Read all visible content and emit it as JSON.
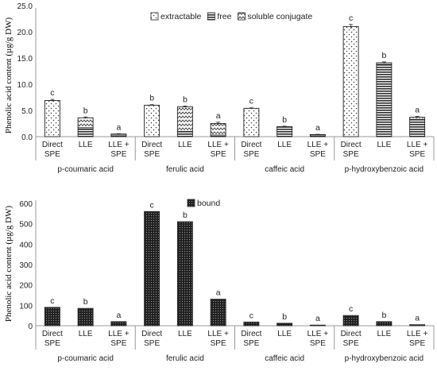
{
  "chart_data": [
    {
      "type": "bar",
      "stacked": true,
      "ylabel": "Phenolic acid content (µg/g DW)",
      "ylim": [
        0,
        25
      ],
      "ytick_labels": [
        "0.0",
        "5.0",
        "10.0",
        "15.0",
        "20.0",
        "25.0"
      ],
      "grid": false,
      "legend_position": "top",
      "groups": [
        "p-coumaric acid",
        "ferulic acid",
        "caffeic acid",
        "p-hydroxybenzoic acid"
      ],
      "methods": [
        "Direct SPE",
        "LLE",
        "LLE + SPE"
      ],
      "series": [
        {
          "name": "extractable",
          "pattern": "dots",
          "values": [
            [
              6.9,
              0,
              0
            ],
            [
              6.0,
              0,
              0
            ],
            [
              5.4,
              0,
              0
            ],
            [
              21.0,
              0,
              0
            ]
          ]
        },
        {
          "name": "free",
          "pattern": "horizontal-lines",
          "values": [
            [
              0,
              1.7,
              0.3
            ],
            [
              0,
              1.0,
              0.3
            ],
            [
              0,
              1.8,
              0.3
            ],
            [
              0,
              13.8,
              3.3
            ]
          ]
        },
        {
          "name": "soluble conjugate",
          "pattern": "zigzag",
          "values": [
            [
              0,
              1.9,
              0.2
            ],
            [
              0,
              4.7,
              2.2
            ],
            [
              0,
              0.1,
              0.1
            ],
            [
              0,
              0.3,
              0.4
            ]
          ]
        }
      ],
      "error_bars": [
        [
          0.2,
          0.15,
          0.05
        ],
        [
          0.1,
          0.15,
          0.25
        ],
        [
          0.1,
          0.1,
          0.05
        ],
        [
          0.4,
          0.15,
          0.15
        ]
      ],
      "significance_letters": [
        [
          "c",
          "b",
          "a"
        ],
        [
          "b",
          "b",
          "a"
        ],
        [
          "c",
          "b",
          "a"
        ],
        [
          "c",
          "b",
          "a"
        ]
      ]
    },
    {
      "type": "bar",
      "ylabel": "Phenolic acid content (µg/g DW)",
      "ylim": [
        0,
        600
      ],
      "ytick_labels": [
        "0",
        "100",
        "200",
        "300",
        "400",
        "500",
        "600"
      ],
      "grid": false,
      "legend_position": "top",
      "groups": [
        "p-coumaric acid",
        "ferulic acid",
        "caffeic acid",
        "p-hydroxybenzoic acid"
      ],
      "methods": [
        "Direct SPE",
        "LLE",
        "LLE + SPE"
      ],
      "series": [
        {
          "name": "bound",
          "pattern": "checker",
          "values": [
            [
              90,
              85,
              20
            ],
            [
              560,
              510,
              130
            ],
            [
              18,
              12,
              3
            ],
            [
              50,
              20,
              5
            ]
          ]
        }
      ],
      "significance_letters": [
        [
          "c",
          "b",
          "a"
        ],
        [
          "c",
          "b",
          "a"
        ],
        [
          "c",
          "b",
          "a"
        ],
        [
          "c",
          "b",
          "a"
        ]
      ]
    }
  ]
}
